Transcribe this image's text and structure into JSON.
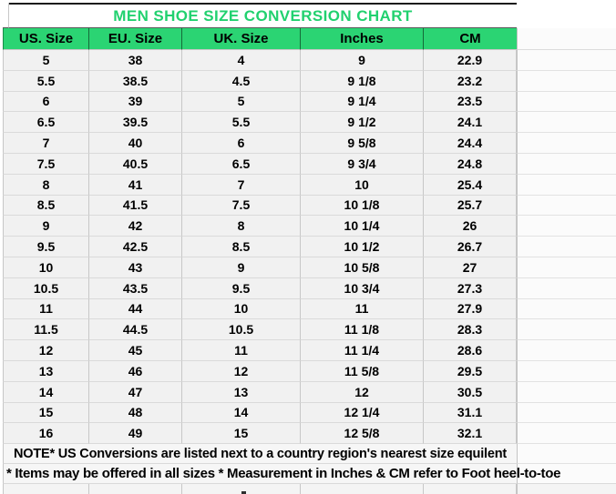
{
  "chart_data": {
    "type": "table",
    "title": "MEN SHOE SIZE CONVERSION CHART",
    "columns": [
      "US. Size",
      "EU. Size",
      "UK. Size",
      "Inches",
      "CM"
    ],
    "rows": [
      [
        "5",
        "38",
        "4",
        "9",
        "22.9"
      ],
      [
        "5.5",
        "38.5",
        "4.5",
        "9 1/8",
        "23.2"
      ],
      [
        "6",
        "39",
        "5",
        "9 1/4",
        "23.5"
      ],
      [
        "6.5",
        "39.5",
        "5.5",
        "9 1/2",
        "24.1"
      ],
      [
        "7",
        "40",
        "6",
        "9 5/8",
        "24.4"
      ],
      [
        "7.5",
        "40.5",
        "6.5",
        "9 3/4",
        "24.8"
      ],
      [
        "8",
        "41",
        "7",
        "10",
        "25.4"
      ],
      [
        "8.5",
        "41.5",
        "7.5",
        "10 1/8",
        "25.7"
      ],
      [
        "9",
        "42",
        "8",
        "10 1/4",
        "26"
      ],
      [
        "9.5",
        "42.5",
        "8.5",
        "10 1/2",
        "26.7"
      ],
      [
        "10",
        "43",
        "9",
        "10 5/8",
        "27"
      ],
      [
        "10.5",
        "43.5",
        "9.5",
        "10 3/4",
        "27.3"
      ],
      [
        "11",
        "44",
        "10",
        "11",
        "27.9"
      ],
      [
        "11.5",
        "44.5",
        "10.5",
        "11 1/8",
        "28.3"
      ],
      [
        "12",
        "45",
        "11",
        "11 1/4",
        "28.6"
      ],
      [
        "13",
        "46",
        "12",
        "11 5/8",
        "29.5"
      ],
      [
        "14",
        "47",
        "13",
        "12",
        "30.5"
      ],
      [
        "15",
        "48",
        "14",
        "12 1/4",
        "31.1"
      ],
      [
        "16",
        "49",
        "15",
        "12 5/8",
        "32.1"
      ]
    ],
    "notes": [
      "NOTE* US Conversions are listed next to a country region's nearest size equilent",
      "* Items may be offered in all sizes * Measurement in Inches & CM refer to Foot heel-to-toe"
    ]
  },
  "title": "MEN SHOE SIZE CONVERSION CHART",
  "colors": {
    "header_green": "#2BD473",
    "title_green": "#21D16F",
    "cell_fill": "#F1F1F1",
    "gridline": "#C7C7C7"
  }
}
